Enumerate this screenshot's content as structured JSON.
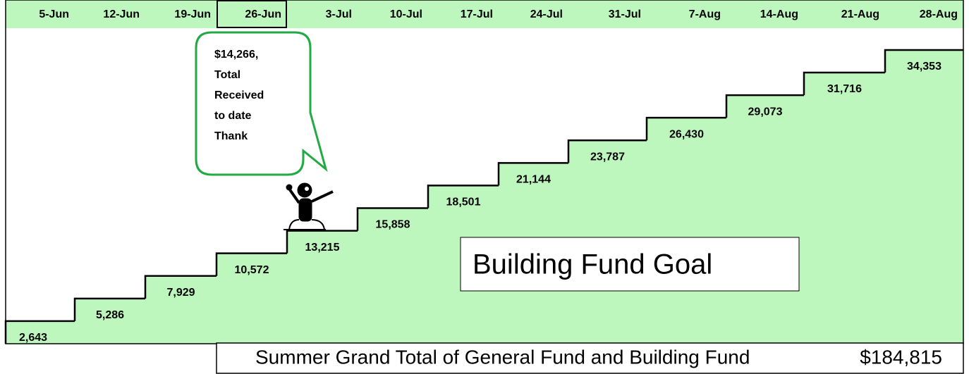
{
  "chart_data": {
    "type": "step",
    "categories": [
      "5-Jun",
      "12-Jun",
      "19-Jun",
      "26-Jun",
      "3-Jul",
      "10-Jul",
      "17-Jul",
      "24-Jul",
      "31-Jul",
      "7-Aug",
      "14-Aug",
      "21-Aug",
      "28-Aug"
    ],
    "values": [
      2643,
      5286,
      7929,
      10572,
      13215,
      15858,
      18501,
      21144,
      23787,
      26430,
      29073,
      31716,
      34353
    ],
    "value_labels": [
      "2,643",
      "5,286",
      "7,929",
      "10,572",
      "13,215",
      "15,858",
      "18,501",
      "21,144",
      "23,787",
      "26,430",
      "29,073",
      "31,716",
      "34,353"
    ],
    "color": "#bdf7bd",
    "highlight": "26-Jun",
    "annotation": [
      "$14,266,",
      "Total",
      "Received",
      "to date",
      "Thank"
    ],
    "goal_label": "Building Fund Goal",
    "footer": {
      "label": "Summer Grand Total of General Fund and Building Fund",
      "total": "$184,815"
    }
  }
}
